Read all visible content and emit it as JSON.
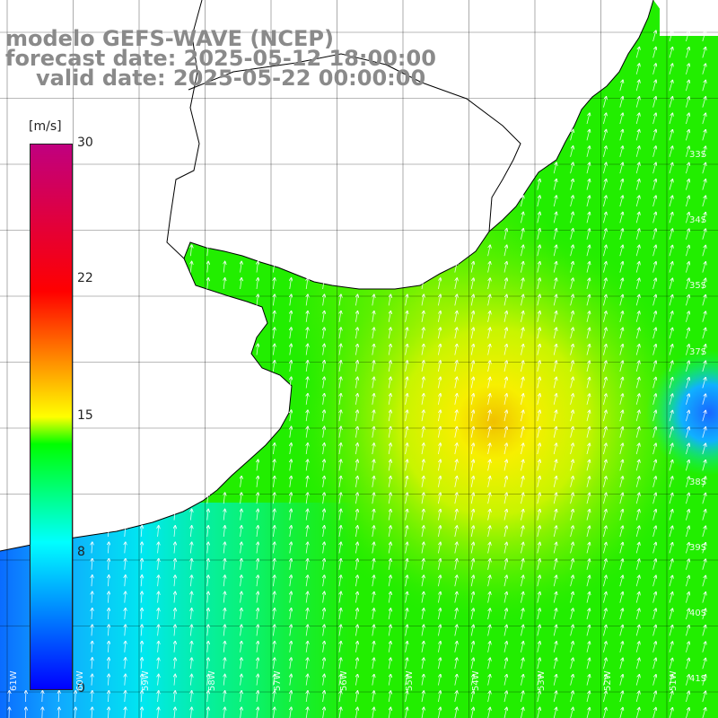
{
  "title": {
    "line1": "modelo GEFS-WAVE (NCEP)",
    "line2": "forecast date: 2025-05-12 18:00:00",
    "line3": "valid date: 2025-05-22 00:00:00"
  },
  "colorbar": {
    "units": "[m/s]",
    "ticks": [
      "30",
      "22",
      "15",
      "8",
      "0"
    ],
    "tick_values": [
      30,
      22,
      15,
      8,
      0
    ],
    "min": 0,
    "max": 30,
    "colors": [
      "#0000ff",
      "#00ffff",
      "#00ff00",
      "#ffff00",
      "#ff0000",
      "#c0007f"
    ]
  },
  "map": {
    "variable": "wind speed and direction",
    "land_color": "#ffffff",
    "coastline_color": "#000000",
    "grid_color": "#000000",
    "arrow_color": "#ffffff",
    "lon_labels": [
      "61W",
      "60W",
      "59W",
      "58W",
      "57W",
      "56W",
      "55W",
      "54W",
      "53W",
      "52W",
      "51W"
    ],
    "lat_labels": [
      "33S",
      "34S",
      "35S",
      "37S",
      "38S",
      "39S",
      "40S",
      "41S"
    ]
  }
}
